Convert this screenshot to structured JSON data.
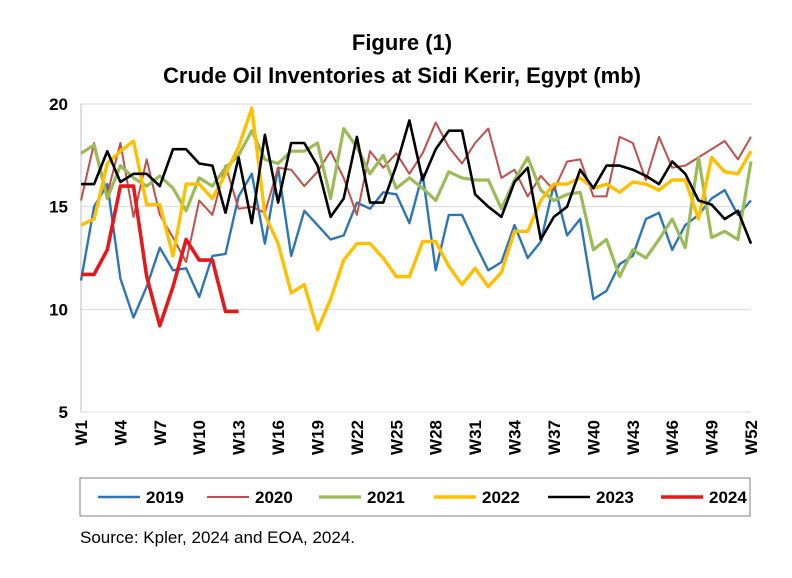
{
  "chart_data": {
    "type": "line",
    "title": "Figure (1)",
    "subtitle": "Crude Oil Inventories at Sidi Kerir, Egypt (mb)",
    "xlabel": "",
    "ylabel": "",
    "ylim": [
      5,
      20
    ],
    "yticks": [
      5,
      10,
      15,
      20
    ],
    "xlim": [
      1,
      52
    ],
    "xtick_labels": [
      "W1",
      "W4",
      "W7",
      "W10",
      "W13",
      "W16",
      "W19",
      "W22",
      "W25",
      "W28",
      "W31",
      "W34",
      "W37",
      "W40",
      "W43",
      "W46",
      "W49",
      "W52"
    ],
    "grid": "horizontal",
    "legend_placement": "bottom",
    "series": [
      {
        "name": "2019",
        "color": "#2E75B6",
        "values": [
          11.4,
          15.0,
          16.1,
          11.5,
          9.6,
          11.1,
          13.0,
          11.9,
          12.0,
          10.6,
          12.6,
          12.7,
          15.5,
          16.6,
          13.2,
          16.9,
          12.6,
          14.8,
          14.1,
          13.4,
          13.6,
          15.2,
          14.9,
          15.7,
          15.6,
          14.2,
          16.6,
          11.9,
          14.6,
          14.6,
          13.2,
          11.9,
          12.3,
          14.1,
          12.5,
          13.3,
          16.1,
          13.6,
          14.4,
          10.5,
          10.9,
          12.2,
          12.6,
          14.4,
          14.7,
          12.9,
          14.1,
          14.6,
          15.4,
          15.8,
          14.6,
          15.3
        ]
      },
      {
        "name": "2020",
        "color": "#C0504D",
        "values": [
          15.3,
          18.1,
          15.6,
          18.1,
          14.5,
          17.3,
          14.6,
          13.5,
          12.3,
          15.3,
          14.6,
          17.0,
          14.9,
          15.0,
          14.7,
          16.9,
          16.8,
          16.0,
          16.7,
          17.7,
          16.4,
          14.6,
          17.7,
          16.9,
          17.6,
          16.6,
          17.6,
          19.1,
          17.9,
          17.1,
          18.1,
          18.8,
          16.4,
          16.8,
          15.5,
          16.5,
          15.8,
          17.2,
          17.3,
          15.5,
          15.5,
          18.4,
          18.1,
          16.3,
          18.4,
          16.9,
          17.0,
          17.4,
          17.8,
          18.2,
          17.3,
          18.4
        ]
      },
      {
        "name": "2021",
        "color": "#9BBB59",
        "values": [
          17.6,
          18.0,
          15.4,
          17.0,
          16.4,
          16.0,
          16.5,
          15.9,
          14.8,
          16.4,
          16.0,
          16.9,
          17.5,
          18.7,
          17.3,
          17.1,
          17.7,
          17.7,
          18.1,
          15.4,
          18.8,
          17.9,
          16.6,
          17.5,
          15.9,
          16.4,
          15.9,
          15.3,
          16.7,
          16.4,
          16.3,
          16.3,
          14.9,
          16.3,
          17.4,
          15.8,
          15.3,
          15.6,
          15.7,
          12.9,
          13.4,
          11.6,
          12.9,
          12.5,
          13.4,
          14.4,
          13.0,
          17.4,
          13.5,
          13.8,
          13.4,
          17.2
        ]
      },
      {
        "name": "2022",
        "color": "#FFC000",
        "values": [
          14.1,
          14.4,
          17.1,
          17.7,
          18.2,
          15.1,
          15.1,
          12.6,
          16.1,
          16.1,
          15.4,
          16.6,
          17.9,
          19.8,
          14.6,
          13.2,
          10.8,
          11.2,
          9.0,
          10.5,
          12.4,
          13.2,
          13.2,
          12.5,
          11.6,
          11.6,
          13.3,
          13.3,
          12.1,
          11.2,
          12.0,
          11.1,
          11.8,
          13.8,
          13.8,
          15.3,
          16.1,
          16.1,
          16.4,
          15.9,
          16.1,
          15.7,
          16.2,
          16.1,
          15.8,
          16.3,
          16.3,
          14.4,
          17.4,
          16.7,
          16.6,
          17.7
        ]
      },
      {
        "name": "2023",
        "color": "#000000",
        "values": [
          16.1,
          16.1,
          17.7,
          16.2,
          16.6,
          16.6,
          16.0,
          17.8,
          17.8,
          17.1,
          17.0,
          14.7,
          17.4,
          14.2,
          18.5,
          15.2,
          18.1,
          18.1,
          17.0,
          14.5,
          15.4,
          18.4,
          15.2,
          15.2,
          17.0,
          19.2,
          16.3,
          17.8,
          18.7,
          18.7,
          15.6,
          15.0,
          14.5,
          16.2,
          16.9,
          13.4,
          14.5,
          15.0,
          16.8,
          15.9,
          17.0,
          17.0,
          16.8,
          16.5,
          16.1,
          17.2,
          16.6,
          15.3,
          15.1,
          14.4,
          14.8,
          13.2
        ]
      },
      {
        "name": "2024",
        "color": "#E31A1C",
        "values": [
          11.7,
          11.7,
          12.9,
          16.0,
          16.0,
          11.6,
          9.2,
          11.1,
          13.4,
          12.4,
          12.4,
          9.9,
          9.9
        ]
      }
    ]
  },
  "source": "Source: Kpler, 2024 and EOA, 2024."
}
